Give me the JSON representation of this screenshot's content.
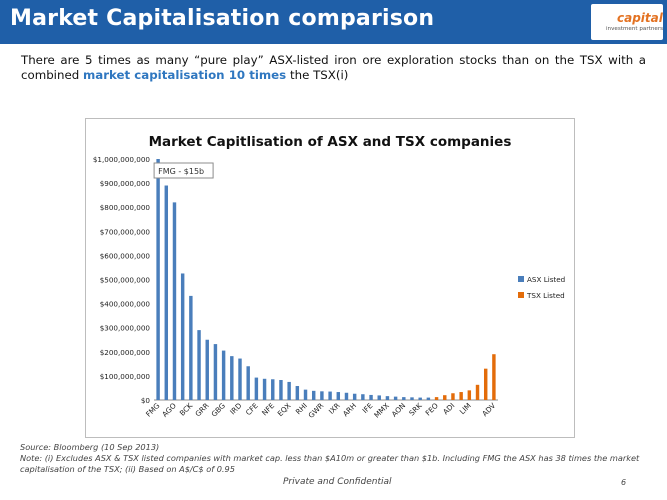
{
  "header": {
    "title": "Market Capitalisation comparison"
  },
  "logo": {
    "word": "capital",
    "sub": "investment partners",
    "color": "#e37222"
  },
  "intro": {
    "text_before": "There are 5 times as many “pure play” ASX-listed iron ore exploration stocks than on the TSX with a combined ",
    "highlight": "market capitalisation 10 times",
    "text_after": " the TSX(i)"
  },
  "chart_data": {
    "type": "bar",
    "title": "Market Capitlisation of ASX and TSX companies",
    "ylim": [
      0,
      1000000000
    ],
    "y_ticks": [
      "$0",
      "$100,000,000",
      "$200,000,000",
      "$300,000,000",
      "$400,000,000",
      "$500,000,000",
      "$600,000,000",
      "$700,000,000",
      "$800,000,000",
      "$900,000,000",
      "$1,000,000,000"
    ],
    "annotation": "FMG - $15b",
    "legend": {
      "position": "right",
      "entries": [
        {
          "name": "ASX Listed",
          "color": "#4a7ebb"
        },
        {
          "name": "TSX Listed",
          "color": "#e36c0a"
        }
      ]
    },
    "bars": [
      {
        "label": "FMG",
        "value": 1000000000,
        "series": "ASX Listed"
      },
      {
        "label": "",
        "value": 890000000,
        "series": "ASX Listed"
      },
      {
        "label": "AGO",
        "value": 820000000,
        "series": "ASX Listed"
      },
      {
        "label": "",
        "value": 525000000,
        "series": "ASX Listed"
      },
      {
        "label": "BCK",
        "value": 432000000,
        "series": "ASX Listed"
      },
      {
        "label": "",
        "value": 290000000,
        "series": "ASX Listed"
      },
      {
        "label": "GRR",
        "value": 250000000,
        "series": "ASX Listed"
      },
      {
        "label": "",
        "value": 232000000,
        "series": "ASX Listed"
      },
      {
        "label": "GBG",
        "value": 205000000,
        "series": "ASX Listed"
      },
      {
        "label": "",
        "value": 182000000,
        "series": "ASX Listed"
      },
      {
        "label": "IRD",
        "value": 172000000,
        "series": "ASX Listed"
      },
      {
        "label": "",
        "value": 140000000,
        "series": "ASX Listed"
      },
      {
        "label": "CFE",
        "value": 93000000,
        "series": "ASX Listed"
      },
      {
        "label": "",
        "value": 88000000,
        "series": "ASX Listed"
      },
      {
        "label": "NFE",
        "value": 86000000,
        "series": "ASX Listed"
      },
      {
        "label": "",
        "value": 83000000,
        "series": "ASX Listed"
      },
      {
        "label": "EQX",
        "value": 75000000,
        "series": "ASX Listed"
      },
      {
        "label": "",
        "value": 58000000,
        "series": "ASX Listed"
      },
      {
        "label": "RHI",
        "value": 43000000,
        "series": "ASX Listed"
      },
      {
        "label": "",
        "value": 38000000,
        "series": "ASX Listed"
      },
      {
        "label": "GWR",
        "value": 36000000,
        "series": "ASX Listed"
      },
      {
        "label": "",
        "value": 35000000,
        "series": "ASX Listed"
      },
      {
        "label": "IXR",
        "value": 33000000,
        "series": "ASX Listed"
      },
      {
        "label": "",
        "value": 30000000,
        "series": "ASX Listed"
      },
      {
        "label": "ARH",
        "value": 26000000,
        "series": "ASX Listed"
      },
      {
        "label": "",
        "value": 24000000,
        "series": "ASX Listed"
      },
      {
        "label": "IFE",
        "value": 21000000,
        "series": "ASX Listed"
      },
      {
        "label": "",
        "value": 19000000,
        "series": "ASX Listed"
      },
      {
        "label": "MMX",
        "value": 16000000,
        "series": "ASX Listed"
      },
      {
        "label": "",
        "value": 14000000,
        "series": "ASX Listed"
      },
      {
        "label": "AON",
        "value": 12000000,
        "series": "ASX Listed"
      },
      {
        "label": "",
        "value": 11000000,
        "series": "ASX Listed"
      },
      {
        "label": "SRK",
        "value": 10000000,
        "series": "ASX Listed"
      },
      {
        "label": "",
        "value": 10000000,
        "series": "ASX Listed"
      },
      {
        "label": "FEO",
        "value": 12000000,
        "series": "TSX Listed"
      },
      {
        "label": "",
        "value": 20000000,
        "series": "TSX Listed"
      },
      {
        "label": "ADI",
        "value": 28000000,
        "series": "TSX Listed"
      },
      {
        "label": "",
        "value": 33000000,
        "series": "TSX Listed"
      },
      {
        "label": "LIM",
        "value": 40000000,
        "series": "TSX Listed"
      },
      {
        "label": "",
        "value": 63000000,
        "series": "TSX Listed"
      },
      {
        "label": "",
        "value": 130000000,
        "series": "TSX Listed"
      },
      {
        "label": "ADV",
        "value": 190000000,
        "series": "TSX Listed"
      }
    ]
  },
  "footer": {
    "source": "Source: Bloomberg (10 Sep 2013)",
    "note": "Note:  (i) Excludes ASX & TSX listed companies with market cap. less than $A10m or greater than $1b. Including FMG the ASX has 38 times the market capitalisation of the TSX; (ii) Based on A$/C$ of 0.95"
  },
  "confidential": "Private and Confidential",
  "page_number": "6"
}
